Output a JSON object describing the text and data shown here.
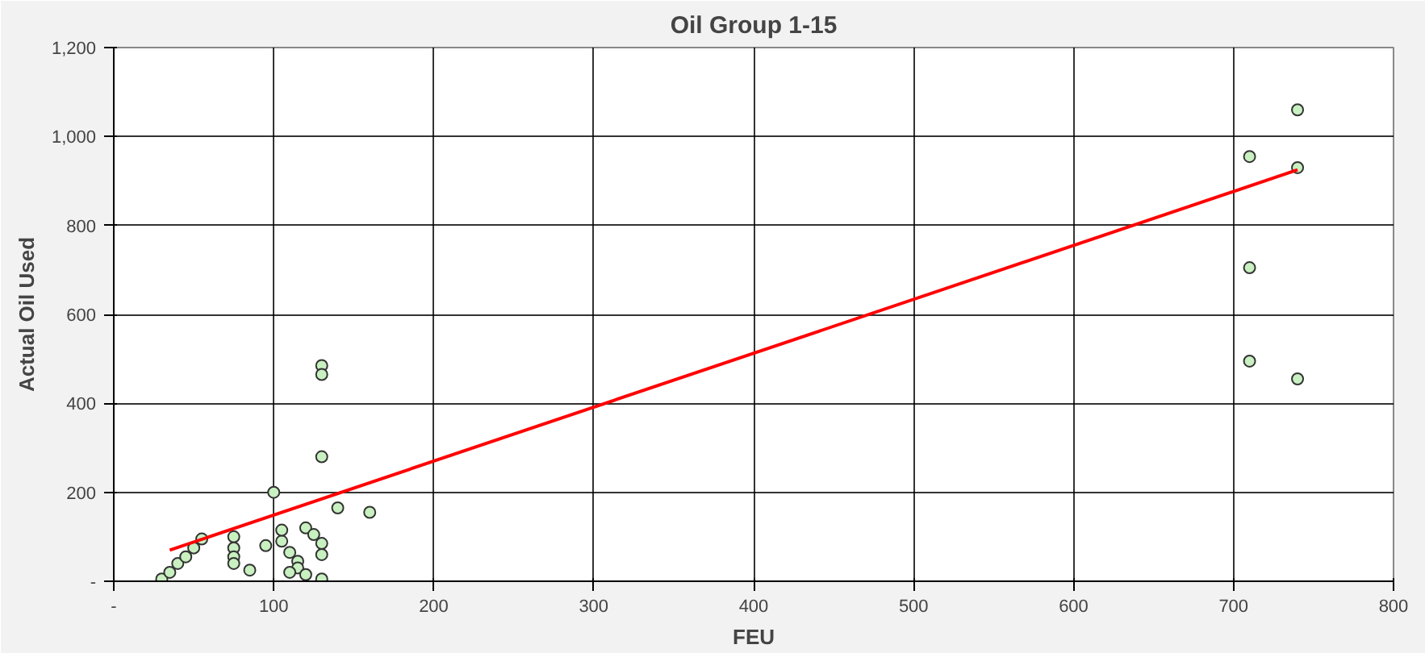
{
  "chart_data": {
    "type": "scatter",
    "title": "Oil Group 1-15",
    "xlabel": "FEU",
    "ylabel": "Actual Oil Used",
    "xlim": [
      0,
      800
    ],
    "ylim": [
      0,
      1200
    ],
    "xticks": [
      {
        "value": 0,
        "label": "-"
      },
      100,
      200,
      300,
      400,
      500,
      600,
      700,
      800
    ],
    "yticks": [
      {
        "value": 0,
        "label": "-"
      },
      {
        "value": 200,
        "label": "200"
      },
      {
        "value": 400,
        "label": "400"
      },
      {
        "value": 600,
        "label": "600"
      },
      {
        "value": 800,
        "label": "800"
      },
      {
        "value": 1000,
        "label": "1,000"
      },
      {
        "value": 1200,
        "label": "1,200"
      }
    ],
    "grid": true,
    "series": [
      {
        "marker": "circle",
        "color": "#c8f0c0",
        "x": [
          710,
          740,
          740,
          710,
          710,
          740,
          130,
          130,
          130,
          100,
          140,
          160,
          30,
          35,
          40,
          45,
          50,
          55,
          75,
          75,
          75,
          75,
          85,
          95,
          105,
          105,
          110,
          115,
          115,
          120,
          125,
          130,
          130,
          120,
          130,
          110
        ],
        "values": [
          955,
          1060,
          930,
          705,
          495,
          455,
          485,
          465,
          280,
          200,
          165,
          155,
          5,
          20,
          40,
          55,
          75,
          95,
          100,
          75,
          55,
          40,
          25,
          80,
          90,
          115,
          65,
          45,
          30,
          120,
          105,
          85,
          60,
          15,
          5,
          20
        ]
      },
      {
        "type": "line",
        "color": "#ff0000",
        "x": [
          35,
          740
        ],
        "values": [
          70,
          925
        ]
      }
    ]
  }
}
